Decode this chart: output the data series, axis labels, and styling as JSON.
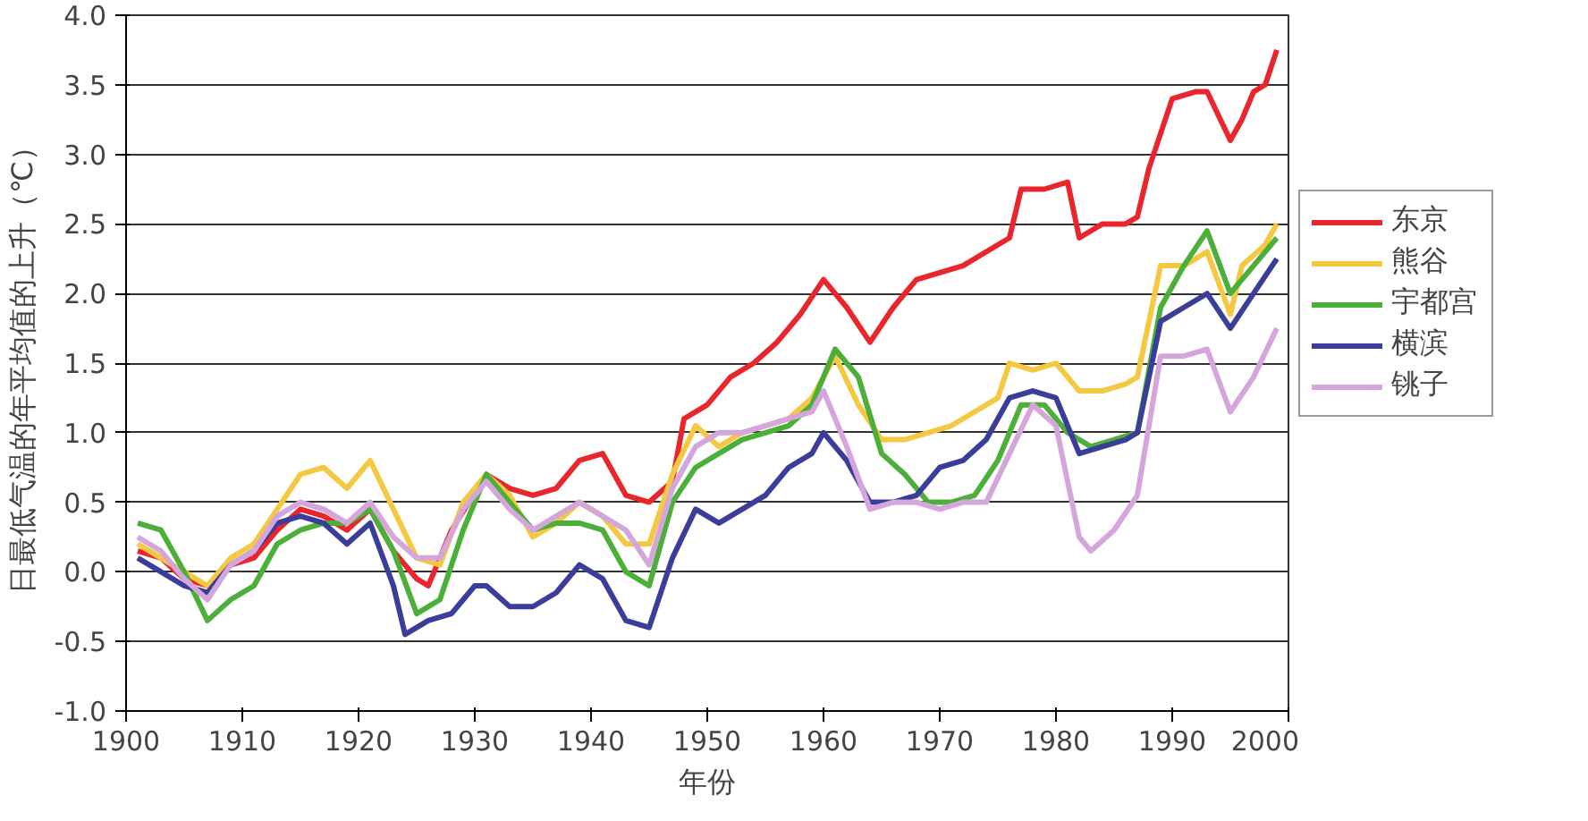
{
  "chart_data": {
    "type": "line",
    "xlabel": "年份",
    "ylabel": "日最低气温的年平均值的上升（℃）",
    "xlim": [
      1900,
      2000
    ],
    "xticks": [
      1900,
      1910,
      1920,
      1930,
      1940,
      1950,
      1960,
      1970,
      1980,
      1990,
      2000
    ],
    "ylim": [
      -1,
      4
    ],
    "yticks": [
      {
        "value": -1,
        "label": "-1.0"
      },
      {
        "value": -0.5,
        "label": "-0.5"
      },
      {
        "value": 0,
        "label": "0.0"
      },
      {
        "value": 0.5,
        "label": "0.5"
      },
      {
        "value": 1,
        "label": "1.0"
      },
      {
        "value": 1.5,
        "label": "1.5"
      },
      {
        "value": 2,
        "label": "2.0"
      },
      {
        "value": 2.5,
        "label": "2.5"
      },
      {
        "value": 3,
        "label": "3.0"
      },
      {
        "value": 3.5,
        "label": "3.5"
      },
      {
        "value": 4,
        "label": "4.0"
      }
    ],
    "grid": "y",
    "legend": "right",
    "marker": "none",
    "line_style": "solid",
    "series": [
      {
        "name": "东京",
        "color": "#e8262b",
        "x": [
          1901,
          1903,
          1905,
          1907,
          1909,
          1911,
          1913,
          1915,
          1917,
          1919,
          1921,
          1923,
          1925,
          1926,
          1928,
          1931,
          1933,
          1935,
          1937,
          1939,
          1941,
          1943,
          1945,
          1947,
          1948,
          1950,
          1952,
          1954,
          1956,
          1958,
          1960,
          1962,
          1964,
          1966,
          1968,
          1970,
          1972,
          1974,
          1976,
          1977,
          1979,
          1981,
          1982,
          1984,
          1986,
          1987,
          1988,
          1990,
          1992,
          1993,
          1995,
          1996,
          1997,
          1998,
          1999
        ],
        "values": [
          0.15,
          0.1,
          -0.05,
          -0.1,
          0.05,
          0.1,
          0.3,
          0.45,
          0.4,
          0.3,
          0.45,
          0.15,
          -0.05,
          -0.1,
          0.3,
          0.7,
          0.6,
          0.55,
          0.6,
          0.8,
          0.85,
          0.55,
          0.5,
          0.65,
          1.1,
          1.2,
          1.4,
          1.5,
          1.65,
          1.85,
          2.1,
          1.9,
          1.65,
          1.9,
          2.1,
          2.15,
          2.2,
          2.3,
          2.4,
          2.75,
          2.75,
          2.8,
          2.4,
          2.5,
          2.5,
          2.55,
          2.9,
          3.4,
          3.45,
          3.45,
          3.1,
          3.25,
          3.45,
          3.5,
          3.75
        ]
      },
      {
        "name": "熊谷",
        "color": "#f5c842",
        "x": [
          1901,
          1903,
          1905,
          1907,
          1909,
          1911,
          1913,
          1915,
          1917,
          1919,
          1921,
          1923,
          1925,
          1927,
          1929,
          1931,
          1933,
          1935,
          1937,
          1939,
          1941,
          1943,
          1945,
          1947,
          1949,
          1951,
          1953,
          1955,
          1957,
          1959,
          1961,
          1963,
          1965,
          1967,
          1969,
          1971,
          1973,
          1975,
          1976,
          1978,
          1980,
          1982,
          1984,
          1986,
          1987,
          1989,
          1991,
          1993,
          1995,
          1996,
          1998,
          1999
        ],
        "values": [
          0.2,
          0.1,
          0.0,
          -0.1,
          0.1,
          0.2,
          0.45,
          0.7,
          0.75,
          0.6,
          0.8,
          0.45,
          0.1,
          0.05,
          0.5,
          0.7,
          0.55,
          0.25,
          0.35,
          0.5,
          0.4,
          0.2,
          0.2,
          0.7,
          1.05,
          0.9,
          1.0,
          1.05,
          1.1,
          1.25,
          1.55,
          1.2,
          0.95,
          0.95,
          1.0,
          1.05,
          1.15,
          1.25,
          1.5,
          1.45,
          1.5,
          1.3,
          1.3,
          1.35,
          1.4,
          2.2,
          2.2,
          2.3,
          1.85,
          2.2,
          2.35,
          2.5
        ]
      },
      {
        "name": "宇都宫",
        "color": "#4caf3a",
        "x": [
          1901,
          1903,
          1905,
          1907,
          1909,
          1911,
          1913,
          1915,
          1917,
          1919,
          1921,
          1923,
          1925,
          1927,
          1929,
          1931,
          1933,
          1935,
          1937,
          1939,
          1941,
          1943,
          1945,
          1947,
          1949,
          1951,
          1953,
          1955,
          1957,
          1959,
          1961,
          1963,
          1965,
          1967,
          1969,
          1971,
          1973,
          1975,
          1977,
          1979,
          1981,
          1983,
          1985,
          1987,
          1989,
          1991,
          1993,
          1995,
          1997,
          1999
        ],
        "values": [
          0.35,
          0.3,
          0.0,
          -0.35,
          -0.2,
          -0.1,
          0.2,
          0.3,
          0.35,
          0.35,
          0.45,
          0.15,
          -0.3,
          -0.2,
          0.3,
          0.7,
          0.5,
          0.3,
          0.35,
          0.35,
          0.3,
          0.0,
          -0.1,
          0.5,
          0.75,
          0.85,
          0.95,
          1.0,
          1.05,
          1.2,
          1.6,
          1.4,
          0.85,
          0.7,
          0.5,
          0.5,
          0.55,
          0.8,
          1.2,
          1.2,
          1.0,
          0.9,
          0.95,
          1.0,
          1.9,
          2.2,
          2.45,
          2.0,
          2.2,
          2.4
        ]
      },
      {
        "name": "横滨",
        "color": "#3a3d9a",
        "x": [
          1901,
          1903,
          1905,
          1907,
          1909,
          1911,
          1913,
          1915,
          1917,
          1919,
          1921,
          1923,
          1924,
          1926,
          1928,
          1930,
          1931,
          1933,
          1935,
          1937,
          1939,
          1941,
          1943,
          1945,
          1947,
          1949,
          1951,
          1953,
          1955,
          1957,
          1959,
          1960,
          1962,
          1964,
          1966,
          1968,
          1970,
          1972,
          1974,
          1976,
          1978,
          1980,
          1982,
          1984,
          1986,
          1987,
          1989,
          1991,
          1993,
          1995,
          1997,
          1999
        ],
        "values": [
          0.1,
          0.0,
          -0.1,
          -0.15,
          0.05,
          0.15,
          0.35,
          0.4,
          0.35,
          0.2,
          0.35,
          -0.1,
          -0.45,
          -0.35,
          -0.3,
          -0.1,
          -0.1,
          -0.25,
          -0.25,
          -0.15,
          0.05,
          -0.05,
          -0.35,
          -0.4,
          0.1,
          0.45,
          0.35,
          0.45,
          0.55,
          0.75,
          0.85,
          1.0,
          0.8,
          0.5,
          0.5,
          0.55,
          0.75,
          0.8,
          0.95,
          1.25,
          1.3,
          1.25,
          0.85,
          0.9,
          0.95,
          1.0,
          1.8,
          1.9,
          2.0,
          1.75,
          2.0,
          2.25
        ]
      },
      {
        "name": "铫子",
        "color": "#d4a6dc",
        "x": [
          1901,
          1903,
          1905,
          1907,
          1909,
          1911,
          1913,
          1915,
          1917,
          1919,
          1921,
          1923,
          1925,
          1927,
          1929,
          1931,
          1933,
          1935,
          1937,
          1939,
          1941,
          1943,
          1945,
          1947,
          1949,
          1951,
          1953,
          1955,
          1957,
          1959,
          1960,
          1962,
          1964,
          1966,
          1968,
          1970,
          1972,
          1974,
          1976,
          1978,
          1980,
          1982,
          1983,
          1985,
          1987,
          1989,
          1991,
          1993,
          1995,
          1997,
          1999
        ],
        "values": [
          0.25,
          0.15,
          -0.05,
          -0.2,
          0.05,
          0.15,
          0.4,
          0.5,
          0.45,
          0.35,
          0.5,
          0.25,
          0.1,
          0.1,
          0.45,
          0.65,
          0.45,
          0.3,
          0.4,
          0.5,
          0.4,
          0.3,
          0.05,
          0.6,
          0.9,
          1.0,
          1.0,
          1.05,
          1.1,
          1.15,
          1.3,
          0.9,
          0.45,
          0.5,
          0.5,
          0.45,
          0.5,
          0.5,
          0.85,
          1.2,
          1.05,
          0.25,
          0.15,
          0.3,
          0.55,
          1.55,
          1.55,
          1.6,
          1.15,
          1.4,
          1.75
        ]
      }
    ]
  }
}
